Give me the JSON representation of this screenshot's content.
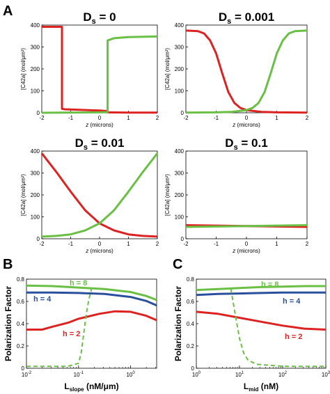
{
  "panel_labels": {
    "a": "A",
    "b": "B",
    "c": "C"
  },
  "colors": {
    "red": "#dd2222",
    "green": "#6abf45",
    "blue": "#2a4f9c"
  },
  "chart_data": [
    {
      "id": "a1",
      "type": "line",
      "title_main": "D",
      "title_sub": "s",
      "title_value": " = 0",
      "xlabel_var": "z",
      "xlabel_rest": " (microns)",
      "ylabel": "[C42a] (mol/μm²)",
      "xlim": [
        -2,
        2
      ],
      "ylim": [
        0,
        400
      ],
      "xticks": [
        "-2",
        "-1",
        "0",
        "1",
        "2"
      ],
      "yticks": [
        "0",
        "100",
        "200",
        "300",
        "400"
      ],
      "series": [
        {
          "color": "red",
          "x": [
            -2,
            -1.3,
            -1.3,
            -1.2,
            0,
            0.25,
            0.25,
            1,
            2
          ],
          "y": [
            392,
            392,
            18,
            16,
            10,
            8,
            2,
            1,
            1
          ]
        },
        {
          "color": "green",
          "x": [
            -2,
            0.0,
            0.28,
            0.28,
            0.5,
            1,
            2
          ],
          "y": [
            0,
            2,
            3,
            330,
            340,
            345,
            348
          ]
        }
      ]
    },
    {
      "id": "a2",
      "type": "line",
      "title_main": "D",
      "title_sub": "s",
      "title_value": " = 0.001",
      "xlabel_var": "z",
      "xlabel_rest": " (microns)",
      "ylabel": "[C42a] (mol/μm²)",
      "xlim": [
        -2,
        2
      ],
      "ylim": [
        0,
        400
      ],
      "xticks": [
        "-2",
        "-1",
        "0",
        "1",
        "2"
      ],
      "yticks": [
        "0",
        "100",
        "200",
        "300",
        "400"
      ],
      "series": [
        {
          "color": "red",
          "x": [
            -2,
            -1.6,
            -1.4,
            -1.2,
            -1.0,
            -0.8,
            -0.6,
            -0.4,
            -0.2,
            0,
            0.5,
            1,
            2
          ],
          "y": [
            375,
            372,
            362,
            330,
            270,
            180,
            95,
            45,
            22,
            12,
            4,
            2,
            1
          ]
        },
        {
          "color": "green",
          "x": [
            -2,
            -1,
            -0.5,
            0,
            0.2,
            0.4,
            0.6,
            0.8,
            1.0,
            1.2,
            1.4,
            1.6,
            2
          ],
          "y": [
            1,
            2,
            4,
            12,
            22,
            45,
            95,
            180,
            270,
            330,
            362,
            372,
            375
          ]
        }
      ]
    },
    {
      "id": "a3",
      "type": "line",
      "title_main": "D",
      "title_sub": "s",
      "title_value": " = 0.01",
      "xlabel_var": "z",
      "xlabel_rest": " (microns)",
      "ylabel": "[C42a] (mol/μm²)",
      "xlim": [
        -2,
        2
      ],
      "ylim": [
        0,
        400
      ],
      "xticks": [
        "-2",
        "-1",
        "0",
        "1",
        "2"
      ],
      "yticks": [
        "0",
        "100",
        "200",
        "300",
        "400"
      ],
      "series": [
        {
          "color": "red",
          "x": [
            -2,
            -1.5,
            -1,
            -0.5,
            0,
            0.5,
            1,
            1.5,
            2
          ],
          "y": [
            390,
            305,
            215,
            130,
            70,
            38,
            20,
            13,
            10
          ]
        },
        {
          "color": "green",
          "x": [
            -2,
            -1.5,
            -1,
            -0.5,
            0,
            0.5,
            1,
            1.5,
            2
          ],
          "y": [
            10,
            13,
            20,
            38,
            70,
            130,
            215,
            305,
            390
          ]
        }
      ]
    },
    {
      "id": "a4",
      "type": "line",
      "title_main": "D",
      "title_sub": "s",
      "title_value": " = 0.1",
      "xlabel_var": "z",
      "xlabel_rest": " (microns)",
      "ylabel": "[C42a] (mol/μm²)",
      "xlim": [
        -2,
        2
      ],
      "ylim": [
        0,
        400
      ],
      "xticks": [
        "-2",
        "-1",
        "0",
        "1",
        "2"
      ],
      "yticks": [
        "0",
        "100",
        "200",
        "300",
        "400"
      ],
      "series": [
        {
          "color": "red",
          "x": [
            -2,
            -1,
            0,
            1,
            2
          ],
          "y": [
            62,
            60,
            58,
            56,
            54
          ]
        },
        {
          "color": "green",
          "x": [
            -2,
            -1,
            0,
            1,
            2
          ],
          "y": [
            54,
            56,
            58,
            60,
            62
          ]
        }
      ]
    },
    {
      "id": "b",
      "type": "line",
      "xscale": "log",
      "xlabel_main": "L",
      "xlabel_sub": "slope",
      "xlabel_rest": "  (nM/μm)",
      "ylabel": "Polarization Factor",
      "xlim_log10": [
        -2,
        0.5
      ],
      "ylim": [
        0,
        0.9
      ],
      "xticks": [
        {
          "base": "10",
          "exp": "-2",
          "pos": -2
        },
        {
          "base": "10",
          "exp": "-1",
          "pos": -1
        },
        {
          "base": "10",
          "exp": "0",
          "pos": 0
        }
      ],
      "yticks": [
        "0",
        "0.2",
        "0.4",
        "0.6",
        "0.8"
      ],
      "legend": [
        {
          "text": "h = 8",
          "color": "green"
        },
        {
          "text": "h = 4",
          "color": "blue"
        },
        {
          "text": "h = 2",
          "color": "red"
        }
      ],
      "series": [
        {
          "name": "h = 8",
          "color": "green",
          "style": "solid",
          "log10x": [
            -2,
            -1.5,
            -1,
            -0.5,
            0,
            0.3,
            0.5
          ],
          "y": [
            0.835,
            0.83,
            0.815,
            0.8,
            0.77,
            0.73,
            0.69
          ]
        },
        {
          "name": "h = 4",
          "color": "blue",
          "style": "solid",
          "log10x": [
            -2,
            -1.5,
            -1,
            -0.5,
            0,
            0.3,
            0.5
          ],
          "y": [
            0.765,
            0.765,
            0.76,
            0.75,
            0.72,
            0.68,
            0.635
          ]
        },
        {
          "name": "h = 2",
          "color": "red",
          "style": "solid",
          "log10x": [
            -2,
            -1.7,
            -1.5,
            -1.2,
            -1,
            -0.6,
            -0.3,
            0,
            0.3,
            0.5
          ],
          "y": [
            0.39,
            0.39,
            0.42,
            0.46,
            0.5,
            0.55,
            0.575,
            0.57,
            0.53,
            0.485
          ]
        },
        {
          "color": "green",
          "style": "dashed",
          "log10x": [
            -2,
            -1.5,
            -1.2,
            -1,
            -0.95,
            -0.9,
            -0.85,
            -0.8,
            -0.75
          ],
          "y": [
            0.02,
            0.02,
            0.02,
            0.05,
            0.15,
            0.35,
            0.55,
            0.7,
            0.8
          ]
        }
      ]
    },
    {
      "id": "c",
      "type": "line",
      "xscale": "log",
      "xlabel_main": "L",
      "xlabel_sub": "mid",
      "xlabel_rest": "  (nM)",
      "ylabel": "Polarization Factor",
      "xlim_log10": [
        0,
        3
      ],
      "ylim": [
        0,
        0.9
      ],
      "xticks": [
        {
          "base": "10",
          "exp": "0",
          "pos": 0
        },
        {
          "base": "10",
          "exp": "1",
          "pos": 1
        },
        {
          "base": "10",
          "exp": "2",
          "pos": 2
        },
        {
          "base": "10",
          "exp": "3",
          "pos": 3
        }
      ],
      "yticks": [
        "0",
        "0.2",
        "0.4",
        "0.6",
        "0.8"
      ],
      "legend": [
        {
          "text": "h = 8",
          "color": "green"
        },
        {
          "text": "h = 4",
          "color": "blue"
        },
        {
          "text": "h = 2",
          "color": "red"
        }
      ],
      "series": [
        {
          "name": "h = 8",
          "color": "green",
          "style": "solid",
          "log10x": [
            0,
            0.5,
            1,
            1.5,
            2,
            2.5,
            3
          ],
          "y": [
            0.79,
            0.8,
            0.81,
            0.82,
            0.825,
            0.83,
            0.83
          ]
        },
        {
          "name": "h = 4",
          "color": "blue",
          "style": "solid",
          "log10x": [
            0,
            0.5,
            1,
            1.5,
            2,
            2.5,
            3
          ],
          "y": [
            0.74,
            0.75,
            0.755,
            0.76,
            0.765,
            0.765,
            0.765
          ]
        },
        {
          "name": "h = 2",
          "color": "red",
          "style": "solid",
          "log10x": [
            0,
            0.5,
            1,
            1.5,
            2,
            2.5,
            3
          ],
          "y": [
            0.57,
            0.55,
            0.51,
            0.47,
            0.43,
            0.4,
            0.39
          ]
        },
        {
          "color": "green",
          "style": "dashed",
          "log10x": [
            0.8,
            0.9,
            1.0,
            1.1,
            1.2,
            1.4,
            2,
            3
          ],
          "y": [
            0.8,
            0.55,
            0.3,
            0.15,
            0.08,
            0.04,
            0.02,
            0.02
          ]
        }
      ]
    }
  ]
}
